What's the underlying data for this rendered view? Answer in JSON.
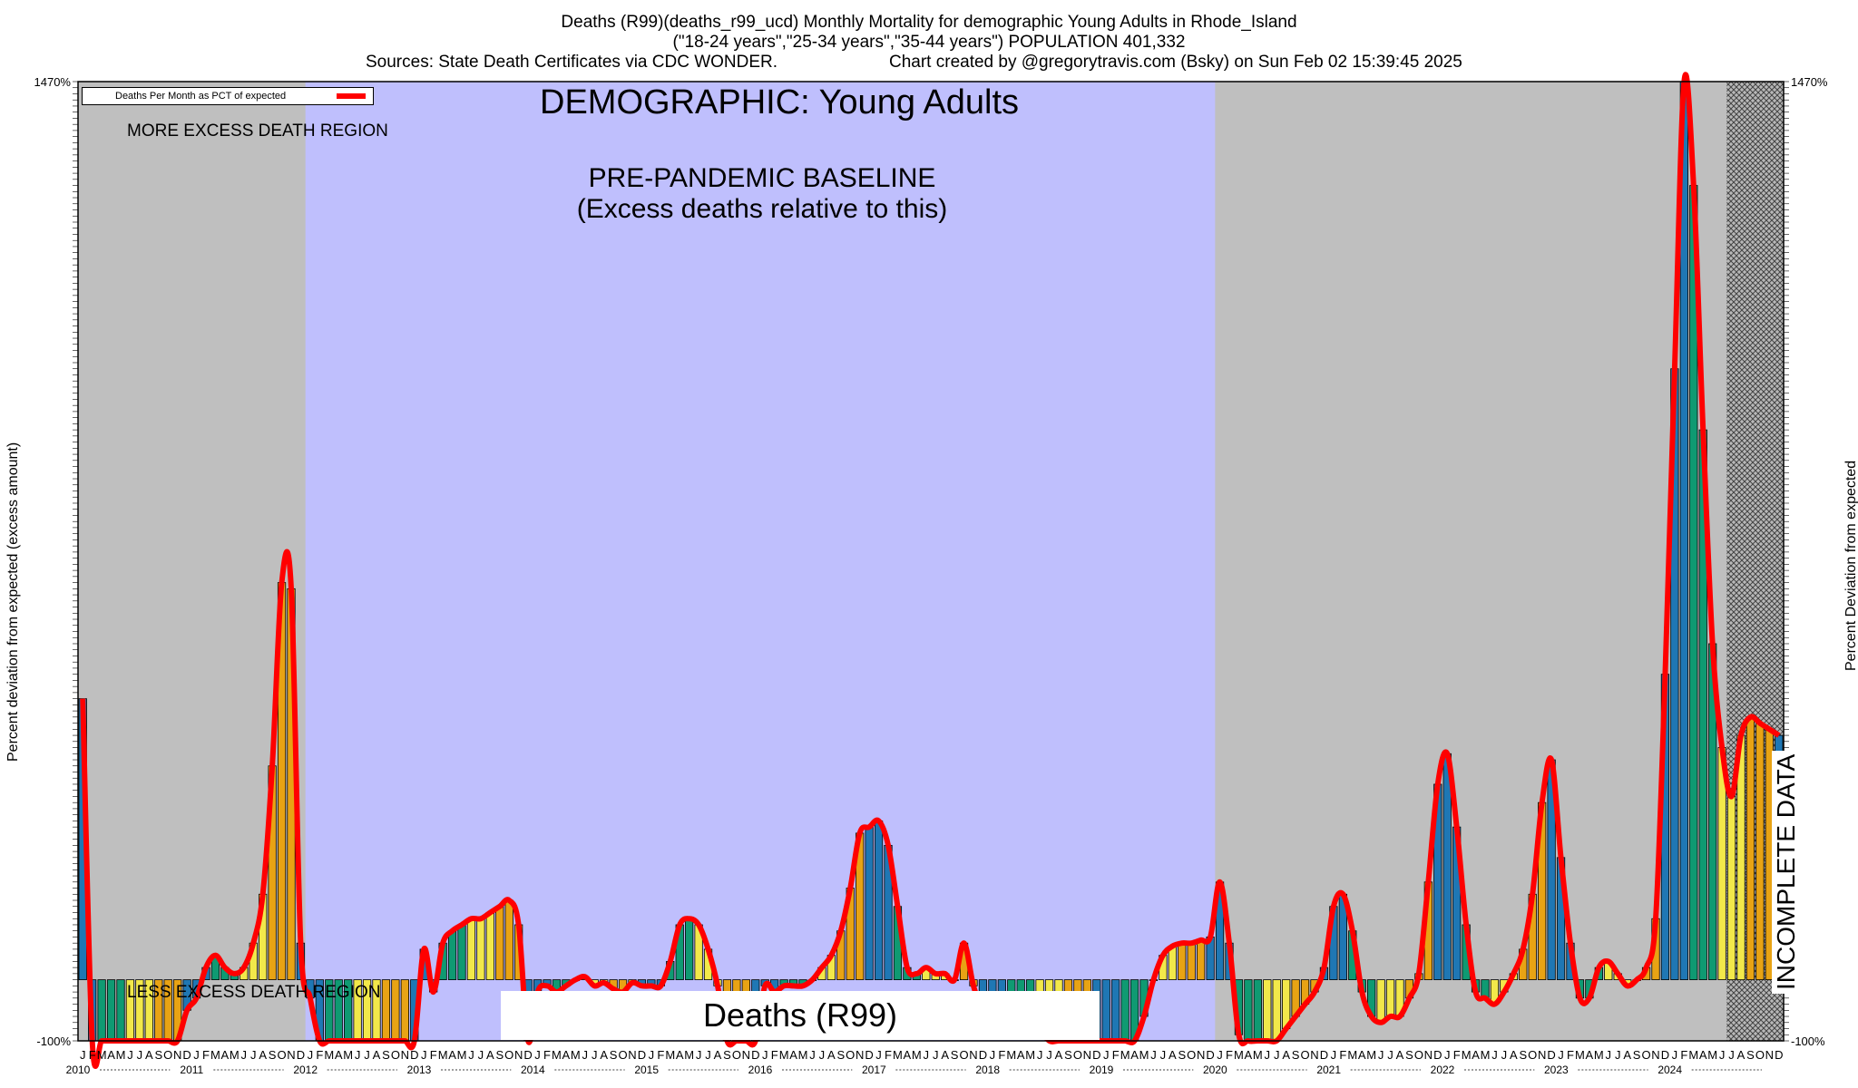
{
  "header": {
    "line1": "Deaths (R99)(deaths_r99_ucd) Monthly Mortality for demographic Young Adults in Rhode_Island",
    "line2": "(\"18-24 years\",\"25-34 years\",\"35-44 years\") POPULATION 401,332",
    "sources": "Sources: State Death Certificates via CDC WONDER.",
    "credit": "Chart created by @gregorytravis.com (Bsky) on Sun Feb 02 15:39:45 2025"
  },
  "labels": {
    "ylabel_left": "Percent deviation from expected (excess amount)",
    "ylabel_right": "Percent Deviation from expected",
    "legend": "Deaths Per Month as PCT of expected",
    "demographic": "DEMOGRAPHIC: Young Adults",
    "more_region": "MORE EXCESS DEATH REGION",
    "less_region": "LESS EXCESS DEATH REGION",
    "baseline_line1": "PRE-PANDEMIC BASELINE",
    "baseline_line2": "(Excess deaths relative to this)",
    "series_name": "Deaths (R99)",
    "incomplete": "INCOMPLETE DATA"
  },
  "chart_data": {
    "type": "bar",
    "start_year": 2010,
    "years": [
      "2010",
      "2011",
      "2012",
      "2013",
      "2014",
      "2015",
      "2016",
      "2017",
      "2018",
      "2019",
      "2020",
      "2021",
      "2022",
      "2023",
      "2024"
    ],
    "month_letters": [
      "J",
      "F",
      "M",
      "A",
      "M",
      "J",
      "J",
      "A",
      "S",
      "O",
      "N",
      "D"
    ],
    "ylim": [
      -100,
      1470
    ],
    "y_tick_min_label": "-100%",
    "y_tick_max_label": "1470%",
    "baseline_range": [
      "2012-01",
      "2019-12"
    ],
    "incomplete_from": "2024-07",
    "season_colors": [
      "#1f77b4",
      "#1f77b4",
      "#0f9a72",
      "#0f9a72",
      "#0f9a72",
      "#f2e84a",
      "#f2e84a",
      "#f2e84a",
      "#e8a314",
      "#e8a314",
      "#e8a314",
      "#1f77b4"
    ],
    "series": [
      {
        "name": "Deaths Per Month as PCT of expected",
        "color": "#ff0000",
        "values": [
          460,
          -100,
          -100,
          -100,
          -100,
          -100,
          -100,
          -100,
          -100,
          -100,
          -100,
          -50,
          -30,
          20,
          40,
          20,
          10,
          20,
          60,
          140,
          350,
          650,
          640,
          60,
          -30,
          -100,
          -100,
          -100,
          -100,
          -100,
          -100,
          -100,
          -100,
          -100,
          -100,
          -100,
          50,
          -20,
          60,
          80,
          90,
          100,
          100,
          110,
          120,
          130,
          90,
          -100,
          -20,
          -10,
          -20,
          -10,
          0,
          5,
          -10,
          -5,
          -15,
          -20,
          -5,
          -10,
          -10,
          -10,
          30,
          90,
          100,
          90,
          50,
          -10,
          -100,
          -100,
          -100,
          -100,
          -10,
          -20,
          -10,
          -10,
          -10,
          0,
          20,
          40,
          80,
          150,
          240,
          250,
          260,
          220,
          120,
          20,
          10,
          20,
          10,
          10,
          0,
          60,
          -10,
          -50,
          -60,
          -60,
          -60,
          -60,
          -60,
          -80,
          -100,
          -100,
          -100,
          -100,
          -100,
          -100,
          -100,
          -100,
          -100,
          -100,
          -60,
          0,
          40,
          55,
          60,
          60,
          65,
          70,
          160,
          60,
          -90,
          -100,
          -100,
          -100,
          -100,
          -80,
          -60,
          -40,
          -20,
          20,
          120,
          140,
          80,
          -20,
          -60,
          -70,
          -60,
          -60,
          -30,
          10,
          160,
          320,
          370,
          250,
          90,
          -20,
          -30,
          -40,
          -20,
          10,
          50,
          140,
          290,
          360,
          200,
          60,
          -30,
          -30,
          20,
          30,
          10,
          -10,
          0,
          20,
          100,
          500,
          1000,
          1470,
          1300,
          900,
          550,
          380,
          300,
          400,
          430,
          420,
          410,
          400
        ]
      }
    ]
  }
}
